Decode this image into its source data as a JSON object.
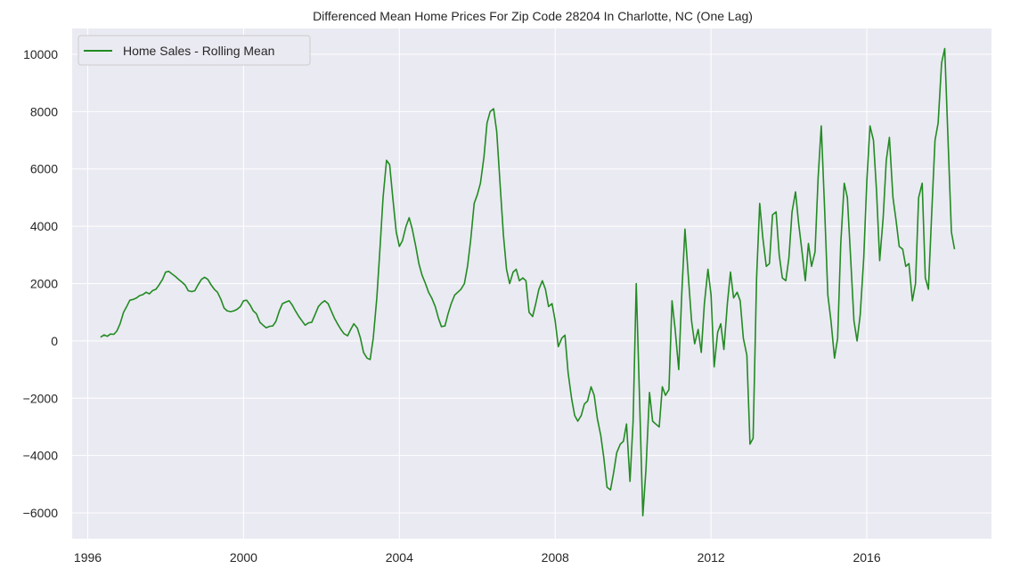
{
  "chart_data": {
    "type": "line",
    "title": "Differenced Mean Home Prices For Zip Code 28204 In Charlotte, NC (One Lag)",
    "xlabel": "",
    "ylabel": "",
    "xlim": [
      1995.6,
      2019.2
    ],
    "ylim": [
      -6900,
      10900
    ],
    "x_ticks": [
      1996,
      2000,
      2004,
      2008,
      2012,
      2016
    ],
    "x_tick_labels": [
      "1996",
      "2000",
      "2004",
      "2008",
      "2012",
      "2016"
    ],
    "y_ticks": [
      10000,
      8000,
      6000,
      4000,
      2000,
      0,
      -2000,
      -4000,
      -6000
    ],
    "y_tick_labels": [
      "10000",
      "8000",
      "6000",
      "4000",
      "2000",
      "0",
      "−2000",
      "−4000",
      "−6000"
    ],
    "grid": true,
    "background": "#eaeaf2",
    "legend": {
      "position": "upper-left",
      "entries": [
        "Home Sales - Rolling Mean"
      ]
    },
    "series": [
      {
        "name": "Home Sales - Rolling Mean",
        "color": "#228b22",
        "points": [
          [
            1996.33,
            130
          ],
          [
            1996.42,
            210
          ],
          [
            1996.5,
            160
          ],
          [
            1996.58,
            240
          ],
          [
            1996.67,
            230
          ],
          [
            1996.75,
            350
          ],
          [
            1996.83,
            600
          ],
          [
            1996.92,
            1000
          ],
          [
            1997.0,
            1200
          ],
          [
            1997.08,
            1420
          ],
          [
            1997.17,
            1450
          ],
          [
            1997.25,
            1500
          ],
          [
            1997.33,
            1580
          ],
          [
            1997.42,
            1620
          ],
          [
            1997.5,
            1700
          ],
          [
            1997.58,
            1640
          ],
          [
            1997.67,
            1760
          ],
          [
            1997.75,
            1800
          ],
          [
            1997.83,
            1950
          ],
          [
            1997.92,
            2150
          ],
          [
            1998.0,
            2400
          ],
          [
            1998.08,
            2430
          ],
          [
            1998.17,
            2330
          ],
          [
            1998.25,
            2250
          ],
          [
            1998.33,
            2150
          ],
          [
            1998.42,
            2050
          ],
          [
            1998.5,
            1950
          ],
          [
            1998.58,
            1750
          ],
          [
            1998.67,
            1720
          ],
          [
            1998.75,
            1750
          ],
          [
            1998.83,
            1950
          ],
          [
            1998.92,
            2150
          ],
          [
            1999.0,
            2220
          ],
          [
            1999.08,
            2150
          ],
          [
            1999.17,
            1950
          ],
          [
            1999.25,
            1800
          ],
          [
            1999.33,
            1700
          ],
          [
            1999.42,
            1450
          ],
          [
            1999.5,
            1150
          ],
          [
            1999.58,
            1050
          ],
          [
            1999.67,
            1020
          ],
          [
            1999.75,
            1050
          ],
          [
            1999.83,
            1100
          ],
          [
            1999.92,
            1200
          ],
          [
            2000.0,
            1400
          ],
          [
            2000.08,
            1420
          ],
          [
            2000.17,
            1250
          ],
          [
            2000.25,
            1050
          ],
          [
            2000.33,
            950
          ],
          [
            2000.42,
            650
          ],
          [
            2000.5,
            550
          ],
          [
            2000.58,
            460
          ],
          [
            2000.67,
            510
          ],
          [
            2000.75,
            520
          ],
          [
            2000.83,
            680
          ],
          [
            2000.92,
            1050
          ],
          [
            2001.0,
            1300
          ],
          [
            2001.08,
            1350
          ],
          [
            2001.17,
            1400
          ],
          [
            2001.25,
            1250
          ],
          [
            2001.33,
            1050
          ],
          [
            2001.42,
            850
          ],
          [
            2001.5,
            700
          ],
          [
            2001.58,
            550
          ],
          [
            2001.67,
            630
          ],
          [
            2001.75,
            650
          ],
          [
            2001.83,
            900
          ],
          [
            2001.92,
            1200
          ],
          [
            2002.0,
            1320
          ],
          [
            2002.08,
            1400
          ],
          [
            2002.17,
            1300
          ],
          [
            2002.25,
            1050
          ],
          [
            2002.33,
            800
          ],
          [
            2002.42,
            580
          ],
          [
            2002.5,
            400
          ],
          [
            2002.58,
            250
          ],
          [
            2002.67,
            180
          ],
          [
            2002.75,
            400
          ],
          [
            2002.83,
            600
          ],
          [
            2002.92,
            450
          ],
          [
            2003.0,
            100
          ],
          [
            2003.08,
            -400
          ],
          [
            2003.17,
            -600
          ],
          [
            2003.25,
            -650
          ],
          [
            2003.33,
            100
          ],
          [
            2003.42,
            1500
          ],
          [
            2003.5,
            3200
          ],
          [
            2003.58,
            5000
          ],
          [
            2003.67,
            6300
          ],
          [
            2003.75,
            6150
          ],
          [
            2003.83,
            5000
          ],
          [
            2003.92,
            3800
          ],
          [
            2004.0,
            3300
          ],
          [
            2004.08,
            3500
          ],
          [
            2004.17,
            4000
          ],
          [
            2004.25,
            4300
          ],
          [
            2004.33,
            3900
          ],
          [
            2004.42,
            3300
          ],
          [
            2004.5,
            2700
          ],
          [
            2004.58,
            2300
          ],
          [
            2004.67,
            2000
          ],
          [
            2004.75,
            1700
          ],
          [
            2004.83,
            1500
          ],
          [
            2004.92,
            1200
          ],
          [
            2005.0,
            800
          ],
          [
            2005.08,
            500
          ],
          [
            2005.17,
            520
          ],
          [
            2005.25,
            950
          ],
          [
            2005.33,
            1300
          ],
          [
            2005.42,
            1600
          ],
          [
            2005.5,
            1700
          ],
          [
            2005.58,
            1800
          ],
          [
            2005.67,
            2000
          ],
          [
            2005.75,
            2600
          ],
          [
            2005.83,
            3500
          ],
          [
            2005.92,
            4800
          ],
          [
            2006.0,
            5100
          ],
          [
            2006.08,
            5500
          ],
          [
            2006.17,
            6400
          ],
          [
            2006.25,
            7600
          ],
          [
            2006.33,
            8000
          ],
          [
            2006.42,
            8100
          ],
          [
            2006.5,
            7300
          ],
          [
            2006.58,
            5600
          ],
          [
            2006.67,
            3700
          ],
          [
            2006.75,
            2500
          ],
          [
            2006.83,
            2000
          ],
          [
            2006.92,
            2400
          ],
          [
            2007.0,
            2500
          ],
          [
            2007.08,
            2100
          ],
          [
            2007.17,
            2200
          ],
          [
            2007.25,
            2100
          ],
          [
            2007.33,
            1000
          ],
          [
            2007.42,
            850
          ],
          [
            2007.5,
            1300
          ],
          [
            2007.58,
            1800
          ],
          [
            2007.67,
            2100
          ],
          [
            2007.75,
            1800
          ],
          [
            2007.83,
            1200
          ],
          [
            2007.92,
            1300
          ],
          [
            2008.0,
            700
          ],
          [
            2008.08,
            -200
          ],
          [
            2008.17,
            100
          ],
          [
            2008.25,
            200
          ],
          [
            2008.33,
            -1100
          ],
          [
            2008.42,
            -2000
          ],
          [
            2008.5,
            -2600
          ],
          [
            2008.58,
            -2800
          ],
          [
            2008.67,
            -2600
          ],
          [
            2008.75,
            -2200
          ],
          [
            2008.83,
            -2100
          ],
          [
            2008.92,
            -1600
          ],
          [
            2009.0,
            -1900
          ],
          [
            2009.08,
            -2700
          ],
          [
            2009.17,
            -3300
          ],
          [
            2009.25,
            -4100
          ],
          [
            2009.33,
            -5100
          ],
          [
            2009.42,
            -5200
          ],
          [
            2009.5,
            -4600
          ],
          [
            2009.58,
            -3900
          ],
          [
            2009.67,
            -3600
          ],
          [
            2009.75,
            -3500
          ],
          [
            2009.83,
            -2900
          ],
          [
            2009.92,
            -4900
          ],
          [
            2010.0,
            -2800
          ],
          [
            2010.08,
            2000
          ],
          [
            2010.17,
            -2200
          ],
          [
            2010.25,
            -6100
          ],
          [
            2010.33,
            -4500
          ],
          [
            2010.42,
            -1800
          ],
          [
            2010.5,
            -2800
          ],
          [
            2010.58,
            -2900
          ],
          [
            2010.67,
            -3000
          ],
          [
            2010.75,
            -1600
          ],
          [
            2010.83,
            -1900
          ],
          [
            2010.92,
            -1700
          ],
          [
            2011.0,
            1400
          ],
          [
            2011.08,
            400
          ],
          [
            2011.17,
            -1000
          ],
          [
            2011.25,
            1700
          ],
          [
            2011.33,
            3900
          ],
          [
            2011.42,
            2200
          ],
          [
            2011.5,
            700
          ],
          [
            2011.58,
            -100
          ],
          [
            2011.67,
            400
          ],
          [
            2011.75,
            -400
          ],
          [
            2011.83,
            1300
          ],
          [
            2011.92,
            2500
          ],
          [
            2012.0,
            1600
          ],
          [
            2012.08,
            -900
          ],
          [
            2012.17,
            300
          ],
          [
            2012.25,
            600
          ],
          [
            2012.33,
            -300
          ],
          [
            2012.42,
            1300
          ],
          [
            2012.5,
            2400
          ],
          [
            2012.58,
            1500
          ],
          [
            2012.67,
            1700
          ],
          [
            2012.75,
            1400
          ],
          [
            2012.83,
            100
          ],
          [
            2012.92,
            -500
          ],
          [
            2013.0,
            -3600
          ],
          [
            2013.08,
            -3400
          ],
          [
            2013.17,
            2200
          ],
          [
            2013.25,
            4800
          ],
          [
            2013.33,
            3600
          ],
          [
            2013.42,
            2600
          ],
          [
            2013.5,
            2700
          ],
          [
            2013.58,
            4400
          ],
          [
            2013.67,
            4500
          ],
          [
            2013.75,
            3000
          ],
          [
            2013.83,
            2200
          ],
          [
            2013.92,
            2100
          ],
          [
            2014.0,
            2900
          ],
          [
            2014.08,
            4500
          ],
          [
            2014.17,
            5200
          ],
          [
            2014.25,
            4100
          ],
          [
            2014.33,
            3200
          ],
          [
            2014.42,
            2100
          ],
          [
            2014.5,
            3400
          ],
          [
            2014.58,
            2600
          ],
          [
            2014.67,
            3100
          ],
          [
            2014.75,
            5700
          ],
          [
            2014.83,
            7500
          ],
          [
            2014.92,
            4500
          ],
          [
            2015.0,
            1600
          ],
          [
            2015.08,
            700
          ],
          [
            2015.17,
            -600
          ],
          [
            2015.25,
            100
          ],
          [
            2015.33,
            3400
          ],
          [
            2015.42,
            5500
          ],
          [
            2015.5,
            5000
          ],
          [
            2015.58,
            3000
          ],
          [
            2015.67,
            700
          ],
          [
            2015.75,
            0
          ],
          [
            2015.83,
            900
          ],
          [
            2015.92,
            2900
          ],
          [
            2016.0,
            5600
          ],
          [
            2016.08,
            7500
          ],
          [
            2016.17,
            7000
          ],
          [
            2016.25,
            5200
          ],
          [
            2016.33,
            2800
          ],
          [
            2016.42,
            4300
          ],
          [
            2016.5,
            6300
          ],
          [
            2016.58,
            7100
          ],
          [
            2016.67,
            5000
          ],
          [
            2016.75,
            4200
          ],
          [
            2016.83,
            3300
          ],
          [
            2016.92,
            3200
          ],
          [
            2017.0,
            2600
          ],
          [
            2017.08,
            2700
          ],
          [
            2017.17,
            1400
          ],
          [
            2017.25,
            2000
          ],
          [
            2017.33,
            5000
          ],
          [
            2017.42,
            5500
          ],
          [
            2017.5,
            2200
          ],
          [
            2017.58,
            1800
          ],
          [
            2017.67,
            4600
          ],
          [
            2017.75,
            7000
          ],
          [
            2017.83,
            7600
          ],
          [
            2017.92,
            9700
          ],
          [
            2018.0,
            10200
          ],
          [
            2018.08,
            7200
          ],
          [
            2018.17,
            3800
          ],
          [
            2018.25,
            3200
          ]
        ]
      }
    ]
  }
}
